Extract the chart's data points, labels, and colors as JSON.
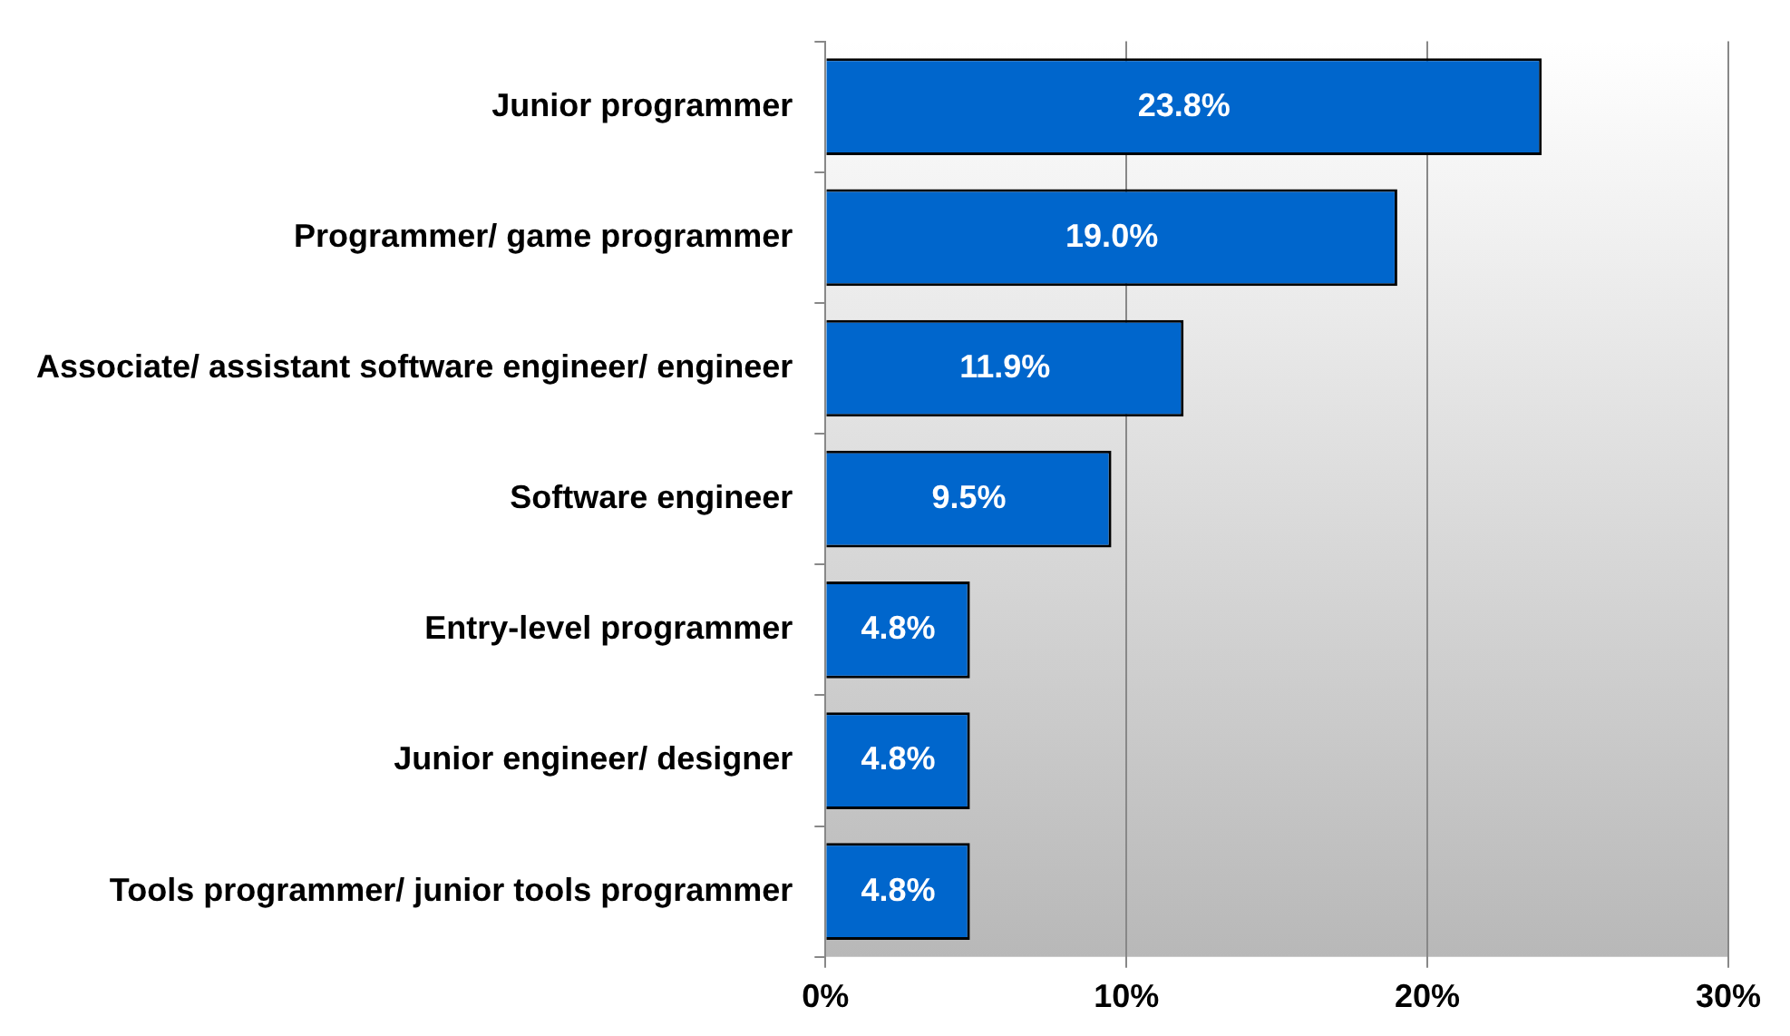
{
  "chart_data": {
    "type": "bar",
    "orientation": "horizontal",
    "categories": [
      "Junior programmer",
      "Programmer/ game programmer",
      "Associate/ assistant software engineer/ engineer",
      "Software engineer",
      "Entry-level programmer",
      "Junior engineer/ designer",
      "Tools programmer/ junior tools programmer"
    ],
    "values": [
      23.8,
      19.0,
      11.9,
      9.5,
      4.8,
      4.8,
      4.8
    ],
    "value_labels": [
      "23.8%",
      "19.0%",
      "11.9%",
      "9.5%",
      "4.8%",
      "4.8%",
      "4.8%"
    ],
    "color": "#0066cc",
    "xlim": [
      0,
      30
    ],
    "xticks": [
      {
        "value": 0,
        "label": "0%"
      },
      {
        "value": 10,
        "label": "10%"
      },
      {
        "value": 20,
        "label": "20%"
      },
      {
        "value": 30,
        "label": "30%"
      }
    ],
    "grid": "x",
    "legend": false
  }
}
